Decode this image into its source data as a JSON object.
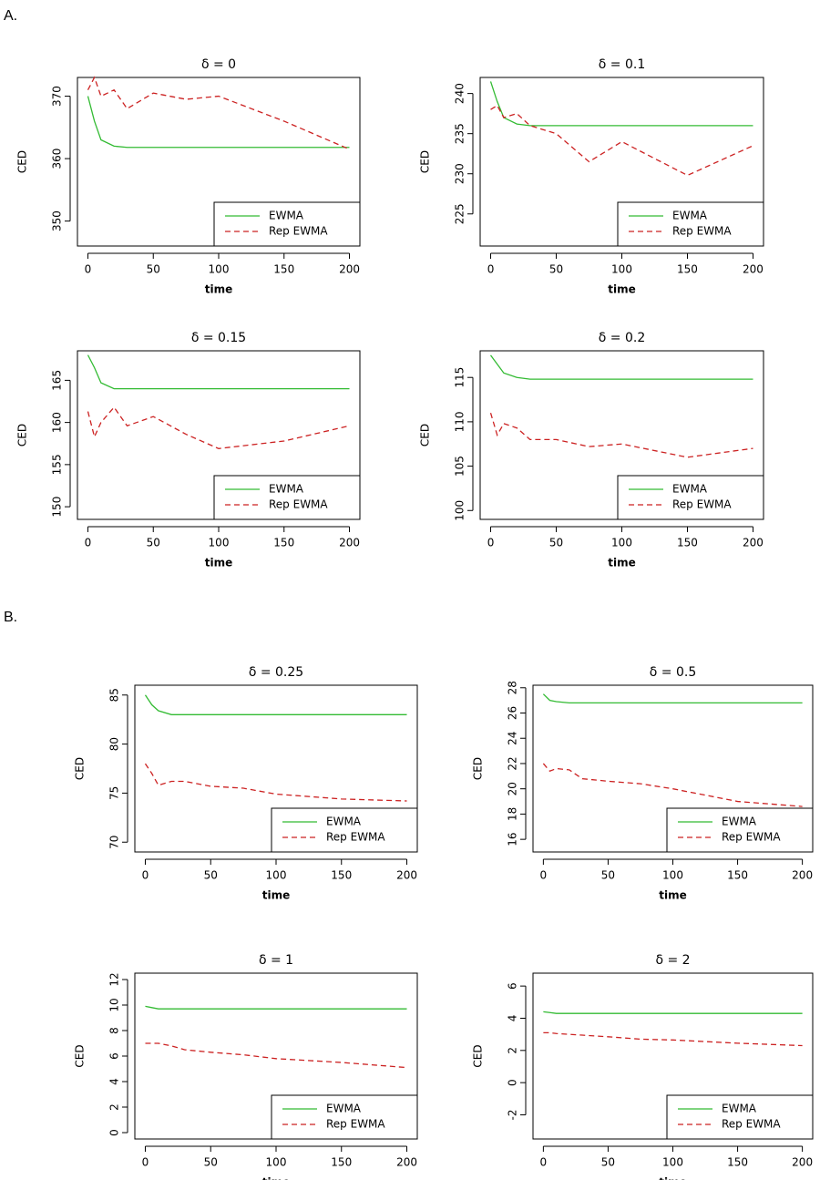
{
  "panel_labels": [
    "A.",
    "B."
  ],
  "chart_data": [
    {
      "type": "line",
      "title": "δ = 0",
      "x_label": "time",
      "y_label": "CED",
      "x": [
        0,
        5,
        10,
        20,
        30,
        50,
        75,
        100,
        150,
        200
      ],
      "series": [
        {
          "name": "EWMA",
          "color": "#33bb33",
          "dash": false,
          "values": [
            370,
            366,
            363,
            362,
            361.8,
            361.8,
            361.8,
            361.8,
            361.8,
            361.8
          ]
        },
        {
          "name": "Rep EWMA",
          "color": "#cc2222",
          "dash": true,
          "values": [
            371,
            373,
            370,
            371,
            368,
            370.5,
            369.5,
            370,
            366,
            361.5
          ]
        }
      ],
      "xlim": [
        -8,
        208
      ],
      "ylim": [
        346,
        373
      ],
      "xticks": [
        0,
        50,
        100,
        150,
        200
      ],
      "yticks": [
        350,
        360,
        370
      ],
      "legend": "bottomright"
    },
    {
      "type": "line",
      "title": "δ = 0.1",
      "x_label": "time",
      "y_label": "CED",
      "x": [
        0,
        5,
        10,
        20,
        30,
        50,
        75,
        100,
        150,
        200
      ],
      "series": [
        {
          "name": "EWMA",
          "color": "#33bb33",
          "dash": false,
          "values": [
            241.5,
            239,
            237,
            236.2,
            236,
            236,
            236,
            236,
            236,
            236
          ]
        },
        {
          "name": "Rep EWMA",
          "color": "#cc2222",
          "dash": true,
          "values": [
            238,
            238.5,
            237,
            237.5,
            236,
            235,
            231.5,
            234,
            229.8,
            233.5
          ]
        }
      ],
      "xlim": [
        -8,
        208
      ],
      "ylim": [
        221,
        242
      ],
      "xticks": [
        0,
        50,
        100,
        150,
        200
      ],
      "yticks": [
        225,
        230,
        235,
        240
      ],
      "legend": "bottomright"
    },
    {
      "type": "line",
      "title": "δ = 0.15",
      "x_label": "time",
      "y_label": "CED",
      "x": [
        0,
        5,
        10,
        20,
        30,
        50,
        75,
        100,
        150,
        200
      ],
      "series": [
        {
          "name": "EWMA",
          "color": "#33bb33",
          "dash": false,
          "values": [
            168,
            166.5,
            164.7,
            164,
            164,
            164,
            164,
            164,
            164,
            164
          ]
        },
        {
          "name": "Rep EWMA",
          "color": "#cc2222",
          "dash": true,
          "values": [
            161.3,
            158.3,
            160,
            161.8,
            159.6,
            160.7,
            158.6,
            156.9,
            157.8,
            159.6
          ]
        }
      ],
      "xlim": [
        -8,
        208
      ],
      "ylim": [
        148.5,
        168.5
      ],
      "xticks": [
        0,
        50,
        100,
        150,
        200
      ],
      "yticks": [
        150,
        155,
        160,
        165
      ],
      "legend": "bottomright"
    },
    {
      "type": "line",
      "title": "δ = 0.2",
      "x_label": "time",
      "y_label": "CED",
      "x": [
        0,
        5,
        10,
        20,
        30,
        50,
        75,
        100,
        150,
        200
      ],
      "series": [
        {
          "name": "EWMA",
          "color": "#33bb33",
          "dash": false,
          "values": [
            117.5,
            116.5,
            115.5,
            115,
            114.8,
            114.8,
            114.8,
            114.8,
            114.8,
            114.8
          ]
        },
        {
          "name": "Rep EWMA",
          "color": "#cc2222",
          "dash": true,
          "values": [
            111,
            108.5,
            109.8,
            109.3,
            108,
            108,
            107.2,
            107.5,
            106,
            107
          ]
        }
      ],
      "xlim": [
        -8,
        208
      ],
      "ylim": [
        99,
        118
      ],
      "xticks": [
        0,
        50,
        100,
        150,
        200
      ],
      "yticks": [
        100,
        105,
        110,
        115
      ],
      "legend": "bottomright"
    },
    {
      "type": "line",
      "title": "δ = 0.25",
      "x_label": "time",
      "y_label": "CED",
      "x": [
        0,
        5,
        10,
        20,
        30,
        50,
        75,
        100,
        150,
        200
      ],
      "series": [
        {
          "name": "EWMA",
          "color": "#33bb33",
          "dash": false,
          "values": [
            85,
            84,
            83.4,
            83,
            83,
            83,
            83,
            83,
            83,
            83
          ]
        },
        {
          "name": "Rep EWMA",
          "color": "#cc2222",
          "dash": true,
          "values": [
            78,
            77,
            75.8,
            76.2,
            76.2,
            75.7,
            75.5,
            74.9,
            74.4,
            74.2
          ]
        }
      ],
      "xlim": [
        -8,
        208
      ],
      "ylim": [
        69,
        86
      ],
      "xticks": [
        0,
        50,
        100,
        150,
        200
      ],
      "yticks": [
        70,
        75,
        80,
        85
      ],
      "legend": "bottomright"
    },
    {
      "type": "line",
      "title": "δ = 0.5",
      "x_label": "time",
      "y_label": "CED",
      "x": [
        0,
        5,
        10,
        20,
        30,
        50,
        75,
        100,
        150,
        200
      ],
      "series": [
        {
          "name": "EWMA",
          "color": "#33bb33",
          "dash": false,
          "values": [
            27.5,
            27,
            26.9,
            26.8,
            26.8,
            26.8,
            26.8,
            26.8,
            26.8,
            26.8
          ]
        },
        {
          "name": "Rep EWMA",
          "color": "#cc2222",
          "dash": true,
          "values": [
            22,
            21.4,
            21.6,
            21.5,
            20.8,
            20.6,
            20.4,
            20,
            19,
            18.6
          ]
        }
      ],
      "xlim": [
        -8,
        208
      ],
      "ylim": [
        15,
        28.2
      ],
      "xticks": [
        0,
        50,
        100,
        150,
        200
      ],
      "yticks": [
        16,
        18,
        20,
        22,
        24,
        26,
        28
      ],
      "legend": "bottomright"
    },
    {
      "type": "line",
      "title": "δ = 1",
      "x_label": "time",
      "y_label": "CED",
      "x": [
        0,
        5,
        10,
        20,
        30,
        50,
        75,
        100,
        150,
        200
      ],
      "series": [
        {
          "name": "EWMA",
          "color": "#33bb33",
          "dash": false,
          "values": [
            9.9,
            9.8,
            9.7,
            9.7,
            9.7,
            9.7,
            9.7,
            9.7,
            9.7,
            9.7
          ]
        },
        {
          "name": "Rep EWMA",
          "color": "#cc2222",
          "dash": true,
          "values": [
            7,
            7,
            7,
            6.8,
            6.5,
            6.3,
            6.1,
            5.8,
            5.5,
            5.1
          ]
        }
      ],
      "xlim": [
        -8,
        208
      ],
      "ylim": [
        -0.5,
        12.5
      ],
      "xticks": [
        0,
        50,
        100,
        150,
        200
      ],
      "yticks": [
        0,
        2,
        4,
        6,
        8,
        10,
        12
      ],
      "legend": "bottomright"
    },
    {
      "type": "line",
      "title": "δ = 2",
      "x_label": "time",
      "y_label": "CED",
      "x": [
        0,
        5,
        10,
        20,
        30,
        50,
        75,
        100,
        150,
        200
      ],
      "series": [
        {
          "name": "EWMA",
          "color": "#33bb33",
          "dash": false,
          "values": [
            4.4,
            4.35,
            4.3,
            4.3,
            4.3,
            4.3,
            4.3,
            4.3,
            4.3,
            4.3
          ]
        },
        {
          "name": "Rep EWMA",
          "color": "#cc2222",
          "dash": true,
          "values": [
            3.1,
            3.1,
            3.05,
            3,
            2.95,
            2.85,
            2.7,
            2.65,
            2.45,
            2.3
          ]
        }
      ],
      "xlim": [
        -8,
        208
      ],
      "ylim": [
        -3.5,
        6.8
      ],
      "xticks": [
        0,
        50,
        100,
        150,
        200
      ],
      "yticks": [
        -2,
        0,
        2,
        4,
        6
      ],
      "legend": "bottomright"
    }
  ]
}
